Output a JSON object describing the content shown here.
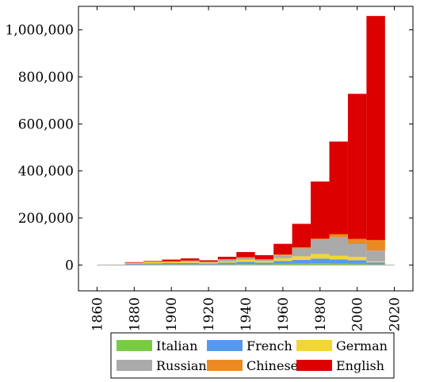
{
  "chart_data": {
    "type": "bar",
    "stacked": true,
    "title": "",
    "xlabel": "",
    "ylabel": "",
    "xlim": [
      1850,
      2030
    ],
    "ylim": [
      -110000,
      1100000
    ],
    "x_ticks": [
      "1860",
      "1880",
      "1900",
      "1920",
      "1940",
      "1960",
      "1980",
      "2000",
      "2020"
    ],
    "y_ticks": [
      {
        "value": 0,
        "label": "0"
      },
      {
        "value": 200000,
        "label": "200,000"
      },
      {
        "value": 400000,
        "label": "400,000"
      },
      {
        "value": 600000,
        "label": "600,000"
      },
      {
        "value": 800000,
        "label": "800,000"
      },
      {
        "value": 1000000,
        "label": "1,000,000"
      }
    ],
    "bin_width": 10,
    "bin_starts": [
      1865,
      1875,
      1885,
      1895,
      1905,
      1915,
      1925,
      1935,
      1945,
      1955,
      1965,
      1975,
      1985,
      1995,
      2005
    ],
    "series": [
      {
        "name": "Italian",
        "color": "#77cc44",
        "values": [
          1000,
          2000,
          3000,
          3000,
          3000,
          2000,
          3000,
          4000,
          3000,
          5000,
          6000,
          7000,
          6000,
          5000,
          3000
        ]
      },
      {
        "name": "French",
        "color": "#5599ee",
        "values": [
          0,
          3000,
          4000,
          5000,
          6000,
          4000,
          7000,
          9000,
          7000,
          12000,
          16000,
          20000,
          18000,
          15000,
          8000
        ]
      },
      {
        "name": "German",
        "color": "#f2d633",
        "values": [
          0,
          3000,
          5000,
          5000,
          5000,
          4000,
          6000,
          10000,
          7000,
          12000,
          15000,
          20000,
          15000,
          14000,
          5000
        ]
      },
      {
        "name": "Russian",
        "color": "#aaaaaa",
        "values": [
          0,
          1000,
          2000,
          2000,
          3000,
          2000,
          6000,
          7000,
          5000,
          12000,
          33000,
          60000,
          80000,
          55000,
          45000
        ]
      },
      {
        "name": "Chinese",
        "color": "#ec8a22",
        "values": [
          0,
          1000,
          1000,
          1000,
          2000,
          2000,
          3000,
          3000,
          2000,
          4000,
          5000,
          5000,
          12000,
          22000,
          45000
        ]
      },
      {
        "name": "English",
        "color": "#dd0000",
        "values": [
          0,
          2000,
          2000,
          7000,
          9000,
          6000,
          10000,
          22000,
          18000,
          45000,
          100000,
          243000,
          394000,
          617000,
          953000
        ]
      }
    ],
    "legend": {
      "placement": "bottom",
      "rows": [
        [
          "Italian",
          "French",
          "German"
        ],
        [
          "Russian",
          "Chinese",
          "English"
        ]
      ]
    },
    "grid": false
  }
}
